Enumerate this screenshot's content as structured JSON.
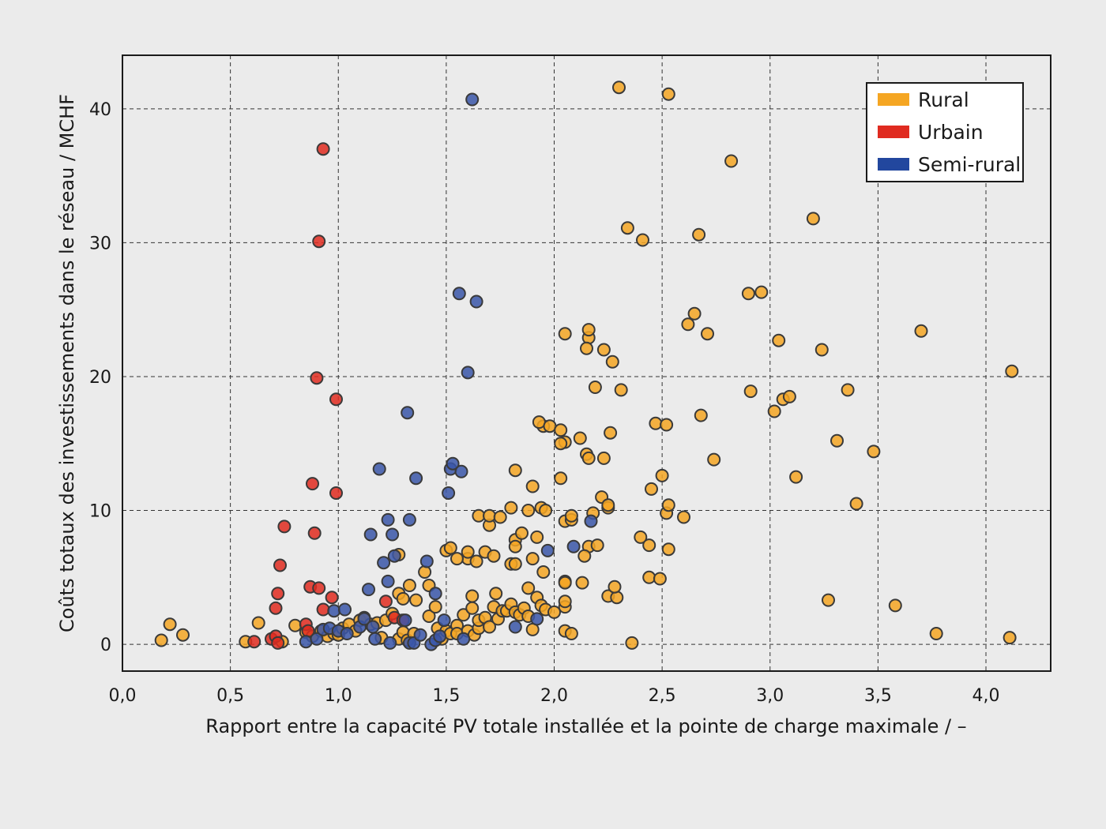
{
  "chart_data": {
    "type": "scatter",
    "title": "",
    "xlabel": "Rapport entre la capacité PV totale installée et la pointe de charge maximale / –",
    "ylabel": "Coûts totaux des investissements dans le réseau / MCHF",
    "xlim": [
      0,
      4.3
    ],
    "ylim": [
      -2,
      44
    ],
    "x_ticks": [
      0,
      0.5,
      1,
      1.5,
      2,
      2.5,
      3,
      3.5,
      4
    ],
    "x_tick_labels": [
      "0,0",
      "0,5",
      "1,0",
      "1,5",
      "2,0",
      "2,5",
      "3,0",
      "3,5",
      "4,0"
    ],
    "y_ticks": [
      0,
      10,
      20,
      30,
      40
    ],
    "y_tick_labels": [
      "0",
      "10",
      "20",
      "30",
      "40"
    ],
    "grid": true,
    "legend_position": "top-right",
    "series": [
      {
        "name": "Rural",
        "color": "#f5a623",
        "points": [
          [
            0.18,
            0.3
          ],
          [
            0.22,
            1.5
          ],
          [
            0.28,
            0.7
          ],
          [
            0.57,
            0.2
          ],
          [
            0.63,
            1.6
          ],
          [
            0.74,
            0.2
          ],
          [
            0.8,
            1.4
          ],
          [
            0.85,
            0.9
          ],
          [
            0.88,
            0.6
          ],
          [
            0.92,
            1.0
          ],
          [
            0.95,
            0.6
          ],
          [
            0.98,
            0.8
          ],
          [
            1.0,
            0.7
          ],
          [
            1.02,
            1.2
          ],
          [
            1.05,
            1.5
          ],
          [
            1.08,
            1.0
          ],
          [
            1.1,
            1.8
          ],
          [
            1.12,
            2.0
          ],
          [
            1.15,
            1.5
          ],
          [
            1.18,
            1.6
          ],
          [
            1.2,
            0.5
          ],
          [
            1.22,
            1.8
          ],
          [
            1.25,
            2.3
          ],
          [
            1.28,
            0.4
          ],
          [
            1.3,
            0.9
          ],
          [
            1.32,
            0.3
          ],
          [
            1.35,
            0.8
          ],
          [
            1.28,
            3.8
          ],
          [
            1.33,
            4.4
          ],
          [
            1.36,
            3.3
          ],
          [
            1.3,
            3.4
          ],
          [
            1.28,
            6.7
          ],
          [
            1.4,
            5.4
          ],
          [
            1.42,
            4.4
          ],
          [
            1.42,
            2.1
          ],
          [
            1.45,
            2.8
          ],
          [
            1.46,
            1.2
          ],
          [
            1.48,
            0.4
          ],
          [
            1.5,
            1.0
          ],
          [
            1.52,
            0.8
          ],
          [
            1.55,
            1.4
          ],
          [
            1.55,
            0.8
          ],
          [
            1.58,
            2.2
          ],
          [
            1.6,
            1.0
          ],
          [
            1.62,
            2.7
          ],
          [
            1.63,
            0.7
          ],
          [
            1.65,
            1.2
          ],
          [
            1.6,
            6.4
          ],
          [
            1.62,
            3.6
          ],
          [
            1.65,
            1.8
          ],
          [
            1.68,
            2.0
          ],
          [
            1.7,
            1.3
          ],
          [
            1.72,
            2.8
          ],
          [
            1.73,
            3.8
          ],
          [
            1.74,
            1.9
          ],
          [
            1.76,
            2.5
          ],
          [
            1.78,
            2.5
          ],
          [
            1.8,
            3.0
          ],
          [
            1.82,
            2.4
          ],
          [
            1.84,
            2.2
          ],
          [
            1.86,
            2.7
          ],
          [
            1.88,
            2.1
          ],
          [
            1.9,
            1.1
          ],
          [
            1.92,
            3.5
          ],
          [
            1.94,
            2.9
          ],
          [
            1.96,
            2.6
          ],
          [
            2.0,
            2.4
          ],
          [
            2.05,
            1.0
          ],
          [
            2.08,
            0.8
          ],
          [
            2.05,
            2.8
          ],
          [
            2.05,
            3.2
          ],
          [
            1.5,
            7.0
          ],
          [
            1.52,
            7.2
          ],
          [
            1.55,
            6.4
          ],
          [
            1.6,
            6.9
          ],
          [
            1.64,
            6.2
          ],
          [
            1.68,
            6.9
          ],
          [
            1.7,
            8.9
          ],
          [
            1.72,
            6.6
          ],
          [
            1.65,
            9.6
          ],
          [
            1.7,
            9.6
          ],
          [
            1.75,
            9.5
          ],
          [
            1.8,
            6.0
          ],
          [
            1.82,
            6.0
          ],
          [
            1.82,
            7.8
          ],
          [
            1.82,
            7.3
          ],
          [
            1.85,
            8.3
          ],
          [
            1.88,
            4.2
          ],
          [
            1.9,
            6.4
          ],
          [
            1.92,
            8.0
          ],
          [
            1.95,
            5.4
          ],
          [
            1.8,
            10.2
          ],
          [
            1.88,
            10.0
          ],
          [
            1.94,
            10.2
          ],
          [
            1.96,
            10.0
          ],
          [
            1.9,
            11.8
          ],
          [
            1.82,
            13.0
          ],
          [
            1.95,
            16.3
          ],
          [
            1.93,
            16.6
          ],
          [
            1.98,
            16.3
          ],
          [
            2.03,
            16.0
          ],
          [
            2.05,
            15.1
          ],
          [
            2.03,
            15.0
          ],
          [
            2.03,
            12.4
          ],
          [
            2.05,
            9.2
          ],
          [
            2.08,
            9.3
          ],
          [
            2.08,
            9.6
          ],
          [
            2.05,
            4.7
          ],
          [
            2.05,
            4.6
          ],
          [
            2.13,
            4.6
          ],
          [
            2.12,
            15.4
          ],
          [
            2.15,
            14.2
          ],
          [
            2.16,
            13.9
          ],
          [
            2.16,
            7.3
          ],
          [
            2.14,
            6.6
          ],
          [
            2.18,
            9.8
          ],
          [
            2.2,
            7.4
          ],
          [
            2.22,
            11.0
          ],
          [
            2.23,
            13.9
          ],
          [
            2.25,
            10.2
          ],
          [
            2.25,
            10.4
          ],
          [
            2.26,
            15.8
          ],
          [
            2.27,
            21.1
          ],
          [
            2.23,
            22.0
          ],
          [
            2.16,
            22.9
          ],
          [
            2.15,
            22.1
          ],
          [
            2.16,
            23.5
          ],
          [
            2.05,
            23.2
          ],
          [
            2.19,
            19.2
          ],
          [
            2.25,
            3.6
          ],
          [
            2.29,
            3.5
          ],
          [
            2.28,
            4.3
          ],
          [
            2.31,
            19.0
          ],
          [
            2.3,
            41.6
          ],
          [
            2.34,
            31.1
          ],
          [
            2.41,
            30.2
          ],
          [
            2.4,
            8.0
          ],
          [
            2.44,
            7.4
          ],
          [
            2.44,
            5.0
          ],
          [
            2.45,
            11.6
          ],
          [
            2.47,
            16.5
          ],
          [
            2.49,
            4.9
          ],
          [
            2.5,
            12.6
          ],
          [
            2.52,
            9.8
          ],
          [
            2.53,
            10.4
          ],
          [
            2.53,
            7.1
          ],
          [
            2.52,
            16.4
          ],
          [
            2.53,
            41.1
          ],
          [
            2.6,
            9.5
          ],
          [
            2.62,
            23.9
          ],
          [
            2.65,
            24.7
          ],
          [
            2.67,
            30.6
          ],
          [
            2.68,
            17.1
          ],
          [
            2.71,
            23.2
          ],
          [
            2.74,
            13.8
          ],
          [
            2.36,
            0.1
          ],
          [
            2.82,
            36.1
          ],
          [
            2.9,
            26.2
          ],
          [
            2.91,
            18.9
          ],
          [
            2.96,
            26.3
          ],
          [
            3.02,
            17.4
          ],
          [
            3.04,
            22.7
          ],
          [
            3.06,
            18.3
          ],
          [
            3.09,
            18.5
          ],
          [
            3.12,
            12.5
          ],
          [
            3.2,
            31.8
          ],
          [
            3.24,
            22.0
          ],
          [
            3.27,
            3.3
          ],
          [
            3.31,
            15.2
          ],
          [
            3.36,
            19.0
          ],
          [
            3.4,
            10.5
          ],
          [
            3.48,
            14.4
          ],
          [
            3.58,
            2.9
          ],
          [
            3.7,
            23.4
          ],
          [
            3.77,
            0.8
          ],
          [
            4.11,
            0.5
          ],
          [
            4.12,
            20.4
          ]
        ]
      },
      {
        "name": "Urbain",
        "color": "#e02b20",
        "points": [
          [
            0.61,
            0.2
          ],
          [
            0.69,
            0.4
          ],
          [
            0.71,
            0.6
          ],
          [
            0.72,
            0.1
          ],
          [
            0.71,
            2.7
          ],
          [
            0.72,
            3.8
          ],
          [
            0.73,
            5.9
          ],
          [
            0.75,
            8.8
          ],
          [
            0.85,
            1.5
          ],
          [
            0.86,
            1.0
          ],
          [
            0.87,
            4.3
          ],
          [
            0.88,
            12.0
          ],
          [
            0.89,
            8.3
          ],
          [
            0.9,
            19.9
          ],
          [
            0.91,
            30.1
          ],
          [
            0.91,
            4.2
          ],
          [
            0.93,
            2.6
          ],
          [
            0.93,
            37.0
          ],
          [
            0.97,
            3.5
          ],
          [
            0.99,
            11.3
          ],
          [
            0.99,
            18.3
          ],
          [
            1.22,
            3.2
          ],
          [
            1.26,
            2.0
          ],
          [
            1.3,
            1.8
          ]
        ]
      },
      {
        "name": "Semi-rural",
        "color": "#3a56a8",
        "points": [
          [
            0.85,
            0.2
          ],
          [
            0.9,
            0.4
          ],
          [
            0.93,
            1.1
          ],
          [
            0.96,
            1.2
          ],
          [
            0.98,
            2.5
          ],
          [
            1.0,
            1.0
          ],
          [
            1.03,
            2.6
          ],
          [
            1.04,
            0.8
          ],
          [
            1.1,
            1.3
          ],
          [
            1.12,
            1.9
          ],
          [
            1.14,
            4.1
          ],
          [
            1.15,
            8.2
          ],
          [
            1.16,
            1.3
          ],
          [
            1.17,
            0.4
          ],
          [
            1.19,
            13.1
          ],
          [
            1.21,
            6.1
          ],
          [
            1.23,
            4.7
          ],
          [
            1.23,
            9.3
          ],
          [
            1.24,
            0.1
          ],
          [
            1.25,
            8.2
          ],
          [
            1.26,
            6.6
          ],
          [
            1.31,
            1.8
          ],
          [
            1.32,
            17.3
          ],
          [
            1.33,
            9.3
          ],
          [
            1.33,
            0.1
          ],
          [
            1.35,
            0.1
          ],
          [
            1.36,
            12.4
          ],
          [
            1.38,
            0.7
          ],
          [
            1.41,
            6.2
          ],
          [
            1.43,
            0.0
          ],
          [
            1.45,
            0.3
          ],
          [
            1.45,
            3.8
          ],
          [
            1.47,
            0.6
          ],
          [
            1.49,
            1.8
          ],
          [
            1.51,
            11.3
          ],
          [
            1.52,
            13.1
          ],
          [
            1.53,
            13.5
          ],
          [
            1.56,
            26.2
          ],
          [
            1.57,
            12.9
          ],
          [
            1.58,
            0.4
          ],
          [
            1.6,
            20.3
          ],
          [
            1.62,
            40.7
          ],
          [
            1.64,
            25.6
          ],
          [
            1.82,
            1.3
          ],
          [
            1.92,
            1.9
          ],
          [
            1.97,
            7.0
          ],
          [
            2.09,
            7.3
          ],
          [
            2.17,
            9.2
          ]
        ]
      }
    ]
  }
}
